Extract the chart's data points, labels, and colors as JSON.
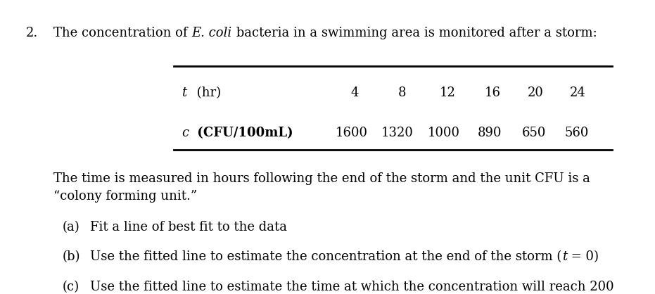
{
  "background_color": "#ffffff",
  "problem_number": "2.",
  "table_row1_label_italic": "t",
  "table_row1_label_normal": " (hr)",
  "table_row1_values": [
    "4",
    "8",
    "12",
    "16",
    "20",
    "24"
  ],
  "table_row2_label_italic": "c",
  "table_row2_label_normal": " (CFU/100mL)",
  "table_row2_values": [
    "1600",
    "1320",
    "1000",
    "890",
    "650",
    "560"
  ],
  "font_size_main": 13,
  "font_size_table": 13,
  "line_color": "#000000"
}
